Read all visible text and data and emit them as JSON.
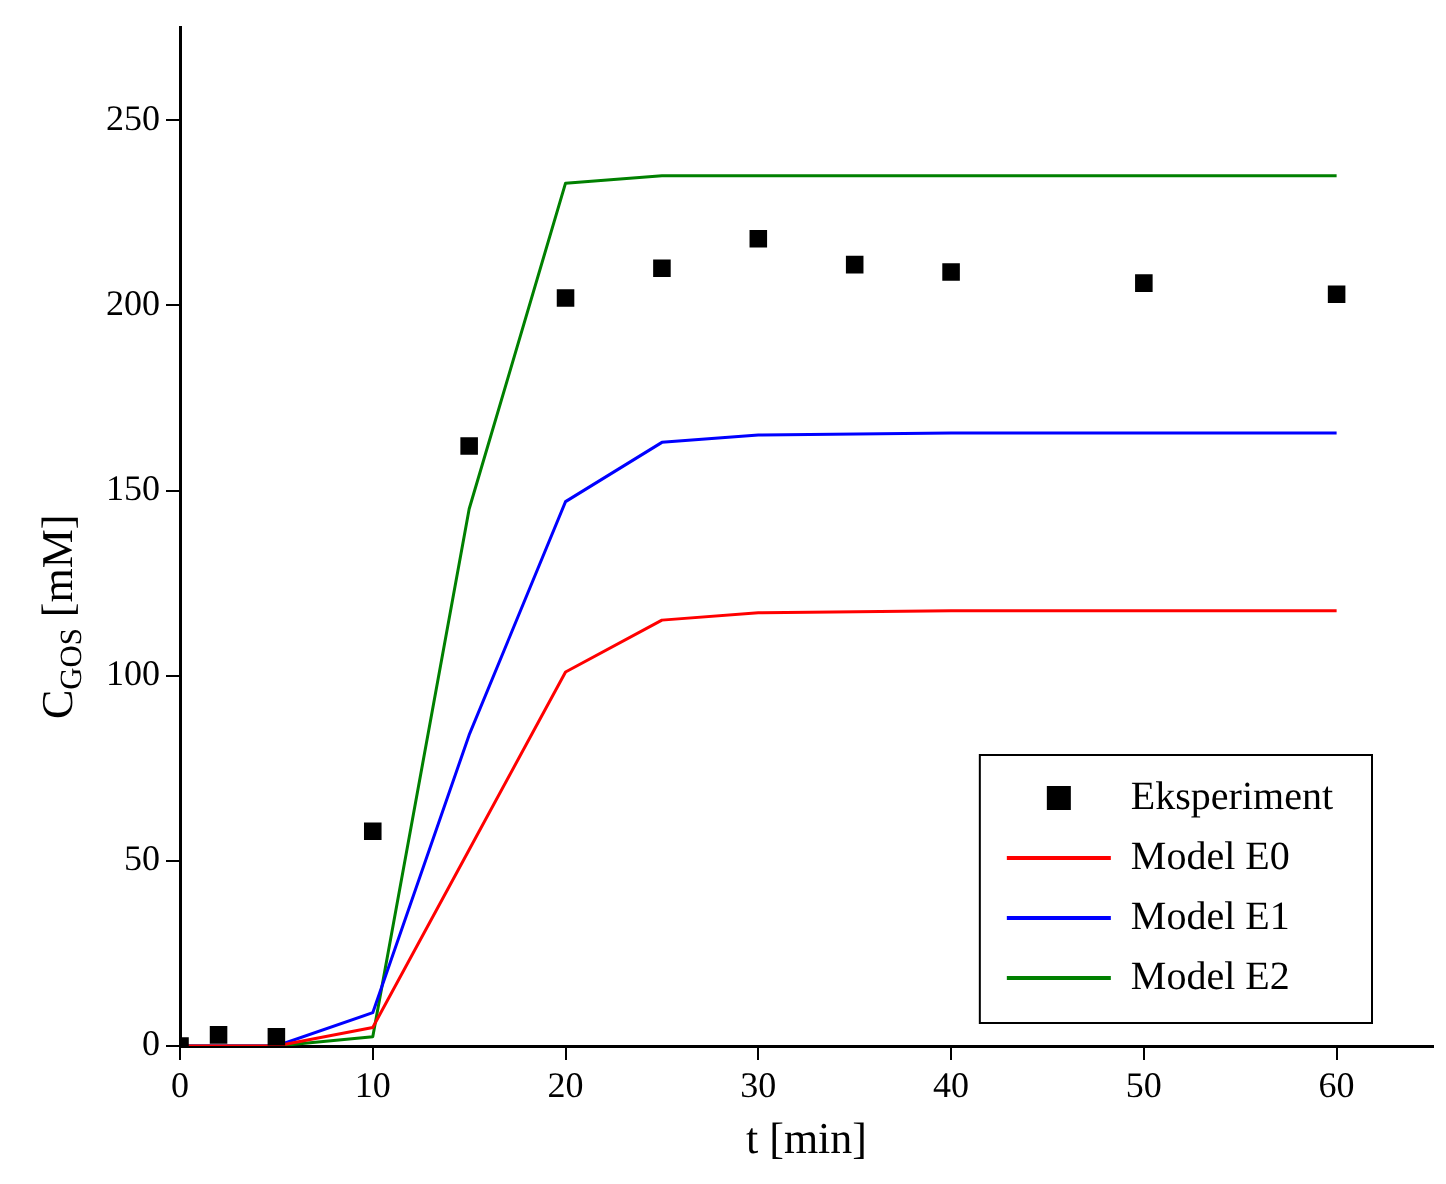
{
  "chart_data": {
    "type": "line",
    "xlabel": "t [min]",
    "ylabel": "C$_{GOS}$ [mM]",
    "xlim": [
      0,
      65
    ],
    "ylim": [
      0,
      275
    ],
    "xticks": [
      0,
      10,
      20,
      30,
      40,
      50,
      60
    ],
    "yticks": [
      0,
      50,
      100,
      150,
      200,
      250
    ],
    "grid": false,
    "legend": "bottom right",
    "line_style": "solid",
    "series": [
      {
        "name": "Eksperiment",
        "type": "scatter",
        "marker": "square",
        "color": "#000000",
        "x": [
          0,
          2,
          5,
          10,
          15,
          20,
          25,
          30,
          35,
          40,
          50,
          60
        ],
        "values": [
          0,
          3,
          2.5,
          58,
          162,
          202,
          210,
          218,
          211,
          209,
          206,
          203
        ]
      },
      {
        "name": "Model E0",
        "marker": "none",
        "color": "#ff0000",
        "x": [
          0,
          5,
          10,
          15,
          20,
          25,
          30,
          40,
          60
        ],
        "values": [
          0,
          0,
          5,
          53,
          101,
          115,
          117,
          117.5,
          117.5
        ]
      },
      {
        "name": "Model E1",
        "marker": "none",
        "color": "#0000ff",
        "x": [
          0,
          5,
          10,
          15,
          20,
          25,
          30,
          40,
          60
        ],
        "values": [
          0,
          0,
          9,
          84,
          147,
          163,
          165,
          165.5,
          165.5
        ]
      },
      {
        "name": "Model E2",
        "marker": "none",
        "color": "#008000",
        "x": [
          0,
          5,
          10,
          15,
          20,
          25,
          30,
          60
        ],
        "values": [
          0,
          0,
          2.5,
          145,
          233,
          235,
          235,
          235
        ]
      }
    ]
  }
}
